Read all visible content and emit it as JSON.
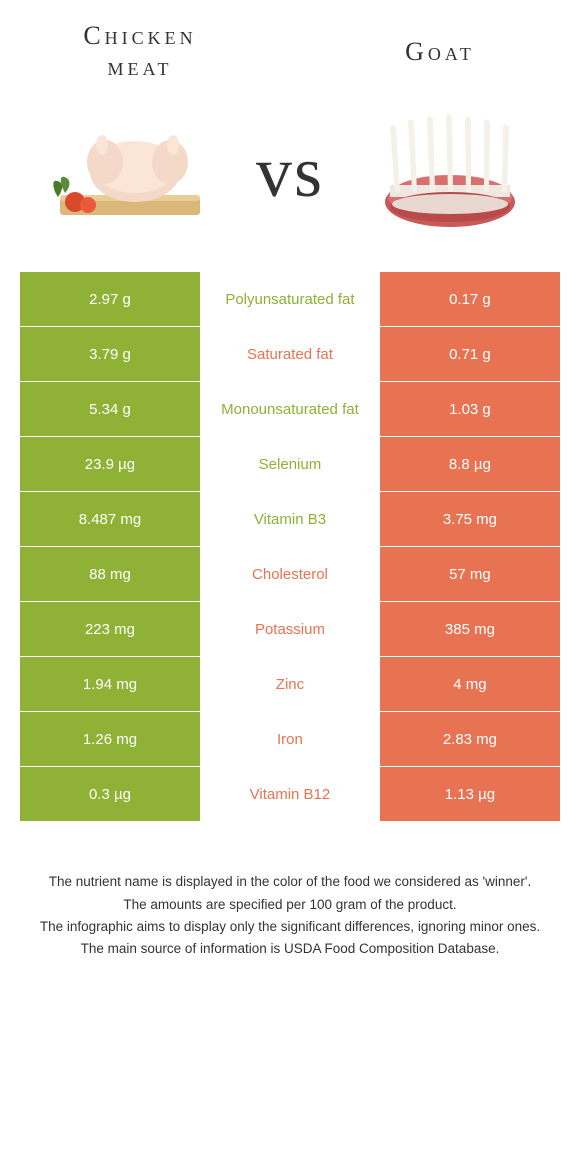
{
  "header": {
    "left_title_line1": "Chicken",
    "left_title_line2": "meat",
    "right_title": "Goat",
    "vs": "vs"
  },
  "colors": {
    "green": "#8fb135",
    "orange": "#e87352",
    "white": "#ffffff",
    "text_dark": "#333333"
  },
  "rows": [
    {
      "left": "2.97 g",
      "mid": "Polyunsaturated fat",
      "right": "0.17 g",
      "winner": "left"
    },
    {
      "left": "3.79 g",
      "mid": "Saturated fat",
      "right": "0.71 g",
      "winner": "right"
    },
    {
      "left": "5.34 g",
      "mid": "Monounsaturated fat",
      "right": "1.03 g",
      "winner": "left"
    },
    {
      "left": "23.9 µg",
      "mid": "Selenium",
      "right": "8.8 µg",
      "winner": "left"
    },
    {
      "left": "8.487 mg",
      "mid": "Vitamin B3",
      "right": "3.75 mg",
      "winner": "left"
    },
    {
      "left": "88 mg",
      "mid": "Cholesterol",
      "right": "57 mg",
      "winner": "right"
    },
    {
      "left": "223 mg",
      "mid": "Potassium",
      "right": "385 mg",
      "winner": "right"
    },
    {
      "left": "1.94 mg",
      "mid": "Zinc",
      "right": "4 mg",
      "winner": "right"
    },
    {
      "left": "1.26 mg",
      "mid": "Iron",
      "right": "2.83 mg",
      "winner": "right"
    },
    {
      "left": "0.3 µg",
      "mid": "Vitamin B12",
      "right": "1.13 µg",
      "winner": "right"
    }
  ],
  "footer": {
    "line1": "The nutrient name is displayed in the color of the food we considered as 'winner'.",
    "line2": "The amounts are specified per 100 gram of the product.",
    "line3": "The infographic aims to display only the significant differences, ignoring minor ones.",
    "line4": "The main source of information is USDA Food Composition Database."
  }
}
